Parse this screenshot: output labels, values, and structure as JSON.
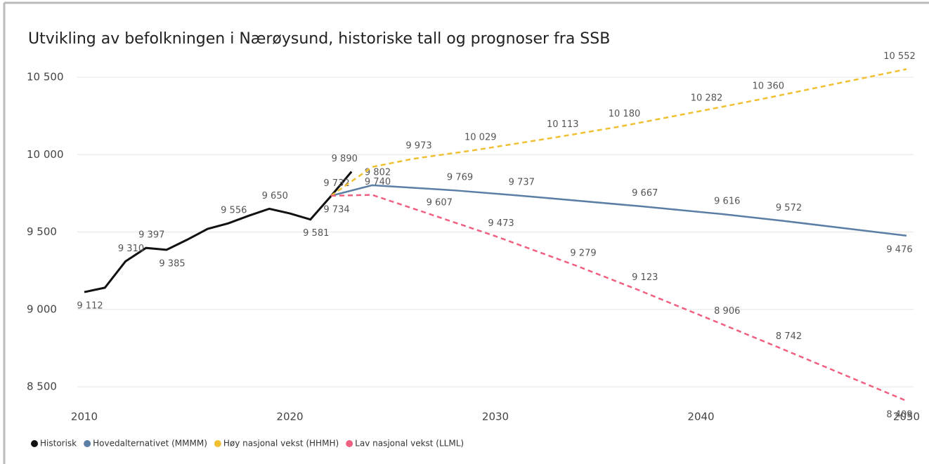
{
  "chart_data": {
    "type": "line",
    "title": "Utvikling av befolkningen i Nærøysund, historiske tall og prognoser fra SSB",
    "xlim": [
      2010,
      2050
    ],
    "xticks": [
      2010,
      2020,
      2030,
      2040,
      2050
    ],
    "ylim": [
      8500,
      10500
    ],
    "yticks": [
      {
        "value": 8500,
        "label": "8 500"
      },
      {
        "value": 9000,
        "label": "9 000"
      },
      {
        "value": 9500,
        "label": "9 500"
      },
      {
        "value": 10000,
        "label": "10 000"
      },
      {
        "value": 10500,
        "label": "10 500"
      }
    ],
    "grid": true,
    "legend": "bottom",
    "series": [
      {
        "name": "Historisk",
        "color": "#111111",
        "dashed": false,
        "x": [
          2010,
          2011,
          2012,
          2013,
          2014,
          2015,
          2016,
          2017,
          2018,
          2019,
          2020,
          2021,
          2022,
          2023
        ],
        "values": [
          9112,
          9140,
          9310,
          9397,
          9385,
          9450,
          9520,
          9556,
          9605,
          9650,
          9620,
          9581,
          9732,
          9890
        ],
        "value_labels": [
          "9 112",
          null,
          "9 310",
          "9 397",
          "9 385",
          null,
          null,
          "9 556",
          null,
          "9 650",
          null,
          "9 581",
          "9 732",
          "9 890"
        ]
      },
      {
        "name": "Hovedalternativet (MMMM)",
        "color": "#5b7ea4",
        "dashed": false,
        "x": [
          2022,
          2024,
          2028,
          2031,
          2037,
          2041,
          2044,
          2050
        ],
        "values": [
          9734,
          9802,
          9769,
          9737,
          9667,
          9616,
          9572,
          9476
        ],
        "value_labels": [
          "9 734",
          "9 802",
          "9 769",
          "9 737",
          "9 667",
          "9 616",
          "9 572",
          "9 476"
        ]
      },
      {
        "name": "Høy nasjonal vekst (HHMH)",
        "color": "#f0c030",
        "dashed": true,
        "x": [
          2022,
          2024,
          2026,
          2029,
          2033,
          2036,
          2040,
          2043,
          2050
        ],
        "values": [
          9734,
          9920,
          9973,
          10029,
          10113,
          10180,
          10282,
          10360,
          10552
        ],
        "value_labels": [
          null,
          null,
          "9 973",
          "10 029",
          "10 113",
          "10 180",
          "10 282",
          "10 360",
          "10 552"
        ]
      },
      {
        "name": "Lav nasjonal vekst (LLML)",
        "color": "#f06080",
        "dashed": true,
        "x": [
          2022,
          2024,
          2027,
          2030,
          2034,
          2037,
          2041,
          2044,
          2050
        ],
        "values": [
          9734,
          9740,
          9607,
          9473,
          9279,
          9123,
          8906,
          8742,
          8409
        ],
        "value_labels": [
          null,
          "9 740",
          "9 607",
          "9 473",
          "9 279",
          "9 123",
          "8 906",
          "8 742",
          "8 409"
        ]
      }
    ]
  }
}
